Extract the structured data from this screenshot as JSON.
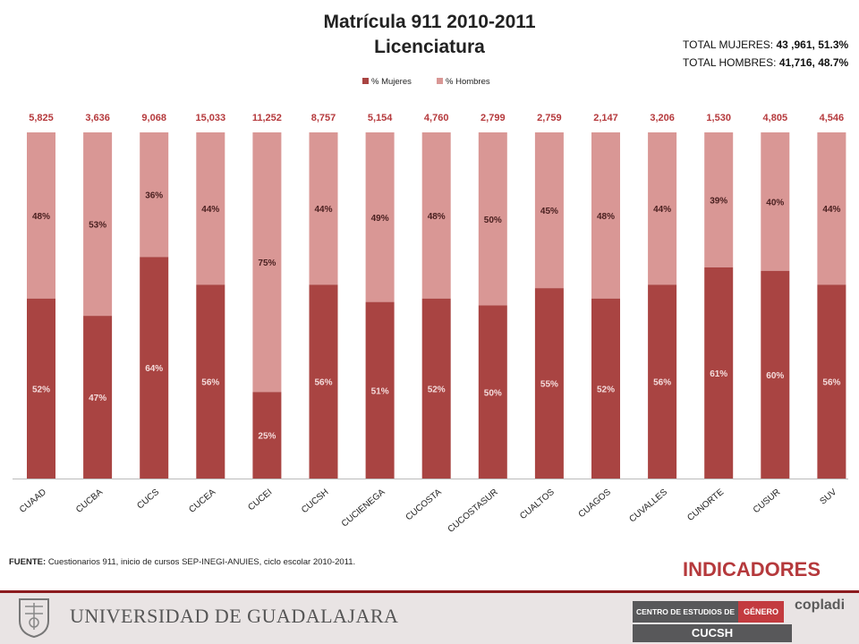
{
  "header": {
    "title_line1": "Matrícula 911 2010-2011",
    "title_line2": "Licenciatura"
  },
  "totals": {
    "mujeres_label": "TOTAL MUJERES:",
    "mujeres_value": "43 ,961,",
    "mujeres_pct": "51.3%",
    "hombres_label": "TOTAL HOMBRES:",
    "hombres_value": "41,716,",
    "hombres_pct": "48.7%"
  },
  "chart_data": {
    "type": "bar",
    "stacked": "100%",
    "categories": [
      "CUAAD",
      "CUCBA",
      "CUCS",
      "CUCEA",
      "CUCEI",
      "CUCSH",
      "CUCIENEGA",
      "CUCOSTA",
      "CUCOSTASUR",
      "CUALTOS",
      "CUAGOS",
      "CUVALLES",
      "CUNORTE",
      "CUSUR",
      "SUV"
    ],
    "totals": [
      "5,825",
      "3,636",
      "9,068",
      "15,033",
      "11,252",
      "8,757",
      "5,154",
      "4,760",
      "2,799",
      "2,759",
      "2,147",
      "3,206",
      "1,530",
      "4,805",
      "4,546"
    ],
    "series": [
      {
        "name": "% Mujeres",
        "color": "#a94442",
        "values": [
          52,
          47,
          64,
          56,
          25,
          56,
          51,
          52,
          50,
          55,
          52,
          56,
          61,
          60,
          56
        ]
      },
      {
        "name": "% Hombres",
        "color": "#d99795",
        "values": [
          48,
          53,
          36,
          44,
          75,
          44,
          49,
          48,
          50,
          45,
          48,
          44,
          39,
          40,
          44
        ]
      }
    ],
    "ylim": [
      0,
      100
    ],
    "legend_position": "top",
    "grid": false
  },
  "source": {
    "label": "FUENTE:",
    "text": "Cuestionarios 911, inicio de cursos SEP-INEGI-ANUIES, ciclo escolar 2010-2011."
  },
  "badge": "INDICADORES",
  "footer": {
    "university": "UNIVERSIDAD DE GUADALAJARA",
    "centro_a": "CENTRO DE ESTUDIOS DE",
    "centro_b": "GÉNERO",
    "cucsh": "CUCSH",
    "copladi": "copladi"
  }
}
